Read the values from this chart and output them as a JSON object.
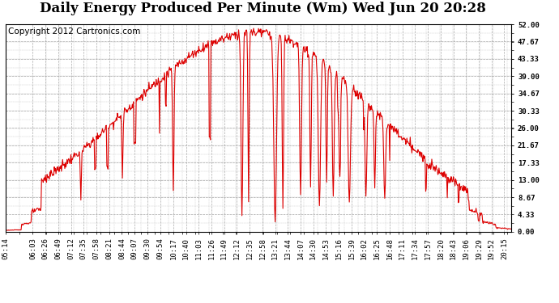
{
  "title": "Daily Energy Produced Per Minute (Wm) Wed Jun 20 20:28",
  "copyright": "Copyright 2012 Cartronics.com",
  "line_color": "#dd0000",
  "background_color": "#ffffff",
  "plot_bg_color": "#ffffff",
  "grid_color": "#aaaaaa",
  "border_color": "#000000",
  "ylim": [
    0,
    52.0
  ],
  "yticks": [
    0.0,
    4.33,
    8.67,
    13.0,
    17.33,
    21.67,
    26.0,
    30.33,
    34.67,
    39.0,
    43.33,
    47.67,
    52.0
  ],
  "ytick_labels": [
    "0.00",
    "4.33",
    "8.67",
    "13.00",
    "17.33",
    "21.67",
    "26.00",
    "30.33",
    "34.67",
    "39.00",
    "43.33",
    "47.67",
    "52.00"
  ],
  "xtick_labels": [
    "05:14",
    "06:03",
    "06:26",
    "06:49",
    "07:12",
    "07:35",
    "07:58",
    "08:21",
    "08:44",
    "09:07",
    "09:30",
    "09:54",
    "10:17",
    "10:40",
    "11:03",
    "11:26",
    "11:49",
    "12:12",
    "12:35",
    "12:58",
    "13:21",
    "13:44",
    "14:07",
    "14:30",
    "14:53",
    "15:16",
    "15:39",
    "16:02",
    "16:25",
    "16:48",
    "17:11",
    "17:34",
    "17:57",
    "18:20",
    "18:43",
    "19:06",
    "19:29",
    "19:52",
    "20:15"
  ],
  "title_fontsize": 12,
  "copyright_fontsize": 7.5,
  "tick_fontsize": 6.5,
  "line_width": 0.8
}
